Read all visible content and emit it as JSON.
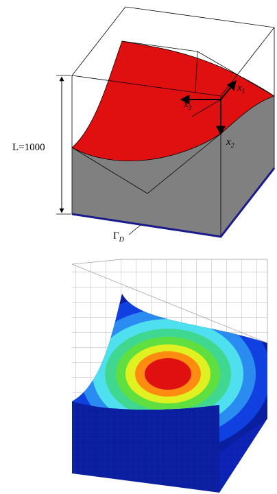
{
  "length_label": "L=1000",
  "axes": [
    {
      "symbol": "x",
      "subscript": "1"
    },
    {
      "symbol": "x",
      "subscript": "2"
    },
    {
      "symbol": "x",
      "subscript": "3"
    }
  ],
  "boundary": {
    "symbol": "Γ",
    "subscript": "D"
  }
}
